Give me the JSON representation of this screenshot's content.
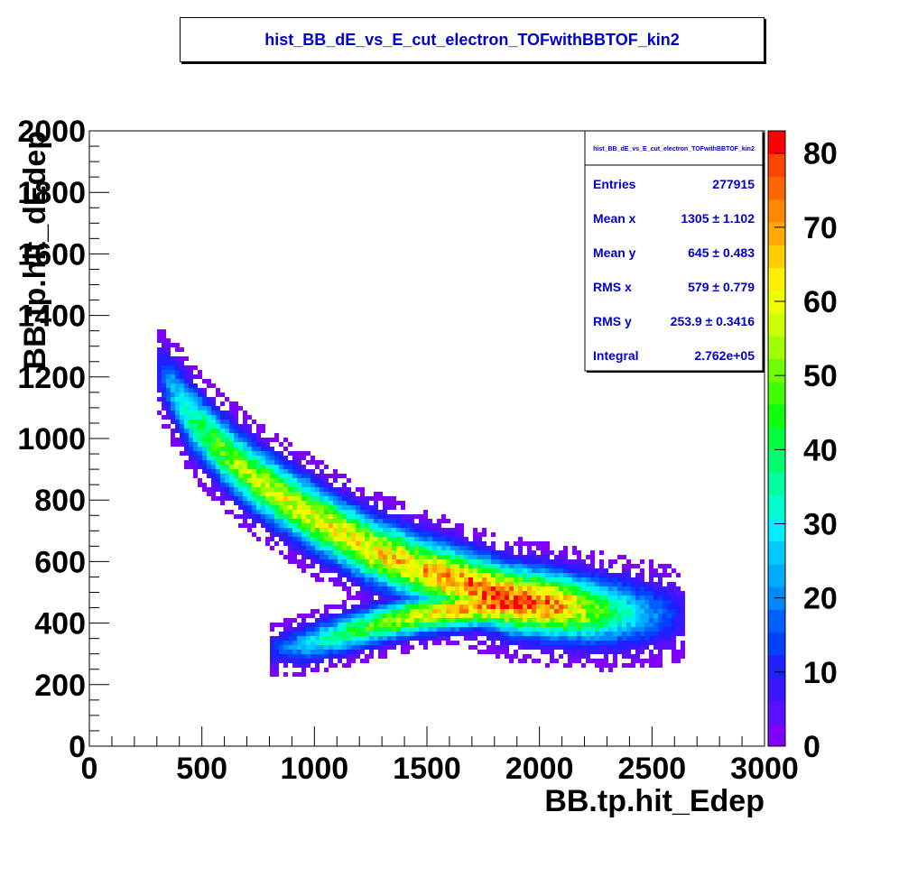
{
  "chart_data": {
    "type": "heatmap",
    "title": "hist_BB_dE_vs_E_cut_electron_TOFwithBBTOF_kin2",
    "xlabel": "BB.tp.hit_Edep",
    "ylabel": "BB.tp.hit_dEdep",
    "xlim": [
      0,
      3000
    ],
    "ylim": [
      0,
      2000
    ],
    "x_ticks": [
      "0",
      "500",
      "1000",
      "1500",
      "2000",
      "2500",
      "3000"
    ],
    "y_ticks": [
      "0",
      "200",
      "400",
      "600",
      "800",
      "1000",
      "1200",
      "1400",
      "1600",
      "1800",
      "2000"
    ],
    "z_range": [
      0,
      83
    ],
    "z_ticks": [
      "0",
      "10",
      "20",
      "30",
      "40",
      "50",
      "60",
      "70",
      "80"
    ],
    "colormap": [
      "#7f00ff",
      "#5a10ff",
      "#3a18ff",
      "#2020ff",
      "#0040ff",
      "#0060ff",
      "#0088ff",
      "#00aaff",
      "#00ccff",
      "#00eeff",
      "#00ffd0",
      "#00ffa0",
      "#00ff70",
      "#00ff40",
      "#10ff10",
      "#40ff00",
      "#70ff00",
      "#a0ff00",
      "#ccff00",
      "#eeff00",
      "#ffee00",
      "#ffcc00",
      "#ffaa00",
      "#ff8800",
      "#ff6600",
      "#ff4400",
      "#ff0000"
    ],
    "bands": [
      {
        "name": "upper-arm",
        "ridge": [
          [
            300,
            1230,
            9
          ],
          [
            350,
            1180,
            20
          ],
          [
            400,
            1120,
            30
          ],
          [
            450,
            1070,
            38
          ],
          [
            550,
            990,
            46
          ],
          [
            650,
            920,
            52
          ],
          [
            750,
            860,
            55
          ],
          [
            900,
            790,
            58
          ],
          [
            1050,
            720,
            60
          ],
          [
            1250,
            640,
            62
          ],
          [
            1450,
            580,
            66
          ],
          [
            1650,
            530,
            72
          ],
          [
            1850,
            480,
            80
          ],
          [
            2050,
            460,
            74
          ],
          [
            2250,
            440,
            50
          ],
          [
            2450,
            430,
            25
          ],
          [
            2650,
            425,
            8
          ]
        ],
        "half_width": 95
      },
      {
        "name": "lower-arm",
        "ridge": [
          [
            800,
            310,
            10
          ],
          [
            950,
            330,
            25
          ],
          [
            1100,
            360,
            38
          ],
          [
            1300,
            400,
            50
          ],
          [
            1500,
            430,
            60
          ],
          [
            1700,
            450,
            70
          ],
          [
            1900,
            460,
            80
          ]
        ],
        "half_width": 55
      }
    ],
    "grid": false,
    "legend_placement": "top-right"
  },
  "stats": {
    "title": "hist_BB_dE_vs_E_cut_electron_TOFwithBBTOF_kin2",
    "rows": [
      {
        "label": "Entries",
        "value": "277915"
      },
      {
        "label": "Mean x",
        "value": "1305 ±  1.102"
      },
      {
        "label": "Mean y",
        "value": "645 ±  0.483"
      },
      {
        "label": "RMS x",
        "value": "579 ±  0.779"
      },
      {
        "label": "RMS y",
        "value": "253.9 ± 0.3416"
      },
      {
        "label": "Integral",
        "value": "2.762e+05"
      }
    ]
  }
}
